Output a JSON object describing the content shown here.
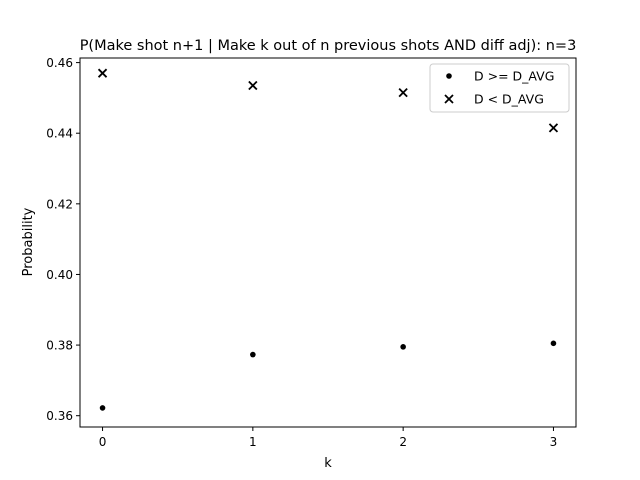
{
  "chart_data": {
    "type": "scatter",
    "title": "P(Make shot n+1 | Make k out of n previous shots AND diff adj): n=3",
    "xlabel": "k",
    "ylabel": "Probability",
    "xlim": [
      -0.15,
      3.15
    ],
    "ylim": [
      0.3568,
      0.4613
    ],
    "x_ticks": [
      0,
      1,
      2,
      3
    ],
    "y_ticks": [
      0.36,
      0.38,
      0.4,
      0.42,
      0.44,
      0.46
    ],
    "y_tick_labels": [
      "0.36",
      "0.38",
      "0.40",
      "0.42",
      "0.44",
      "0.46"
    ],
    "grid": false,
    "legend_position": "top-right",
    "series": [
      {
        "name": "D >= D_AVG",
        "marker": "dot",
        "color": "#000000",
        "x": [
          0,
          1,
          2,
          3
        ],
        "y": [
          0.3622,
          0.3773,
          0.3795,
          0.3805
        ]
      },
      {
        "name": "D < D_AVG",
        "marker": "x",
        "color": "#000000",
        "x": [
          0,
          1,
          2,
          3
        ],
        "y": [
          0.457,
          0.4535,
          0.4515,
          0.4415
        ]
      }
    ]
  }
}
